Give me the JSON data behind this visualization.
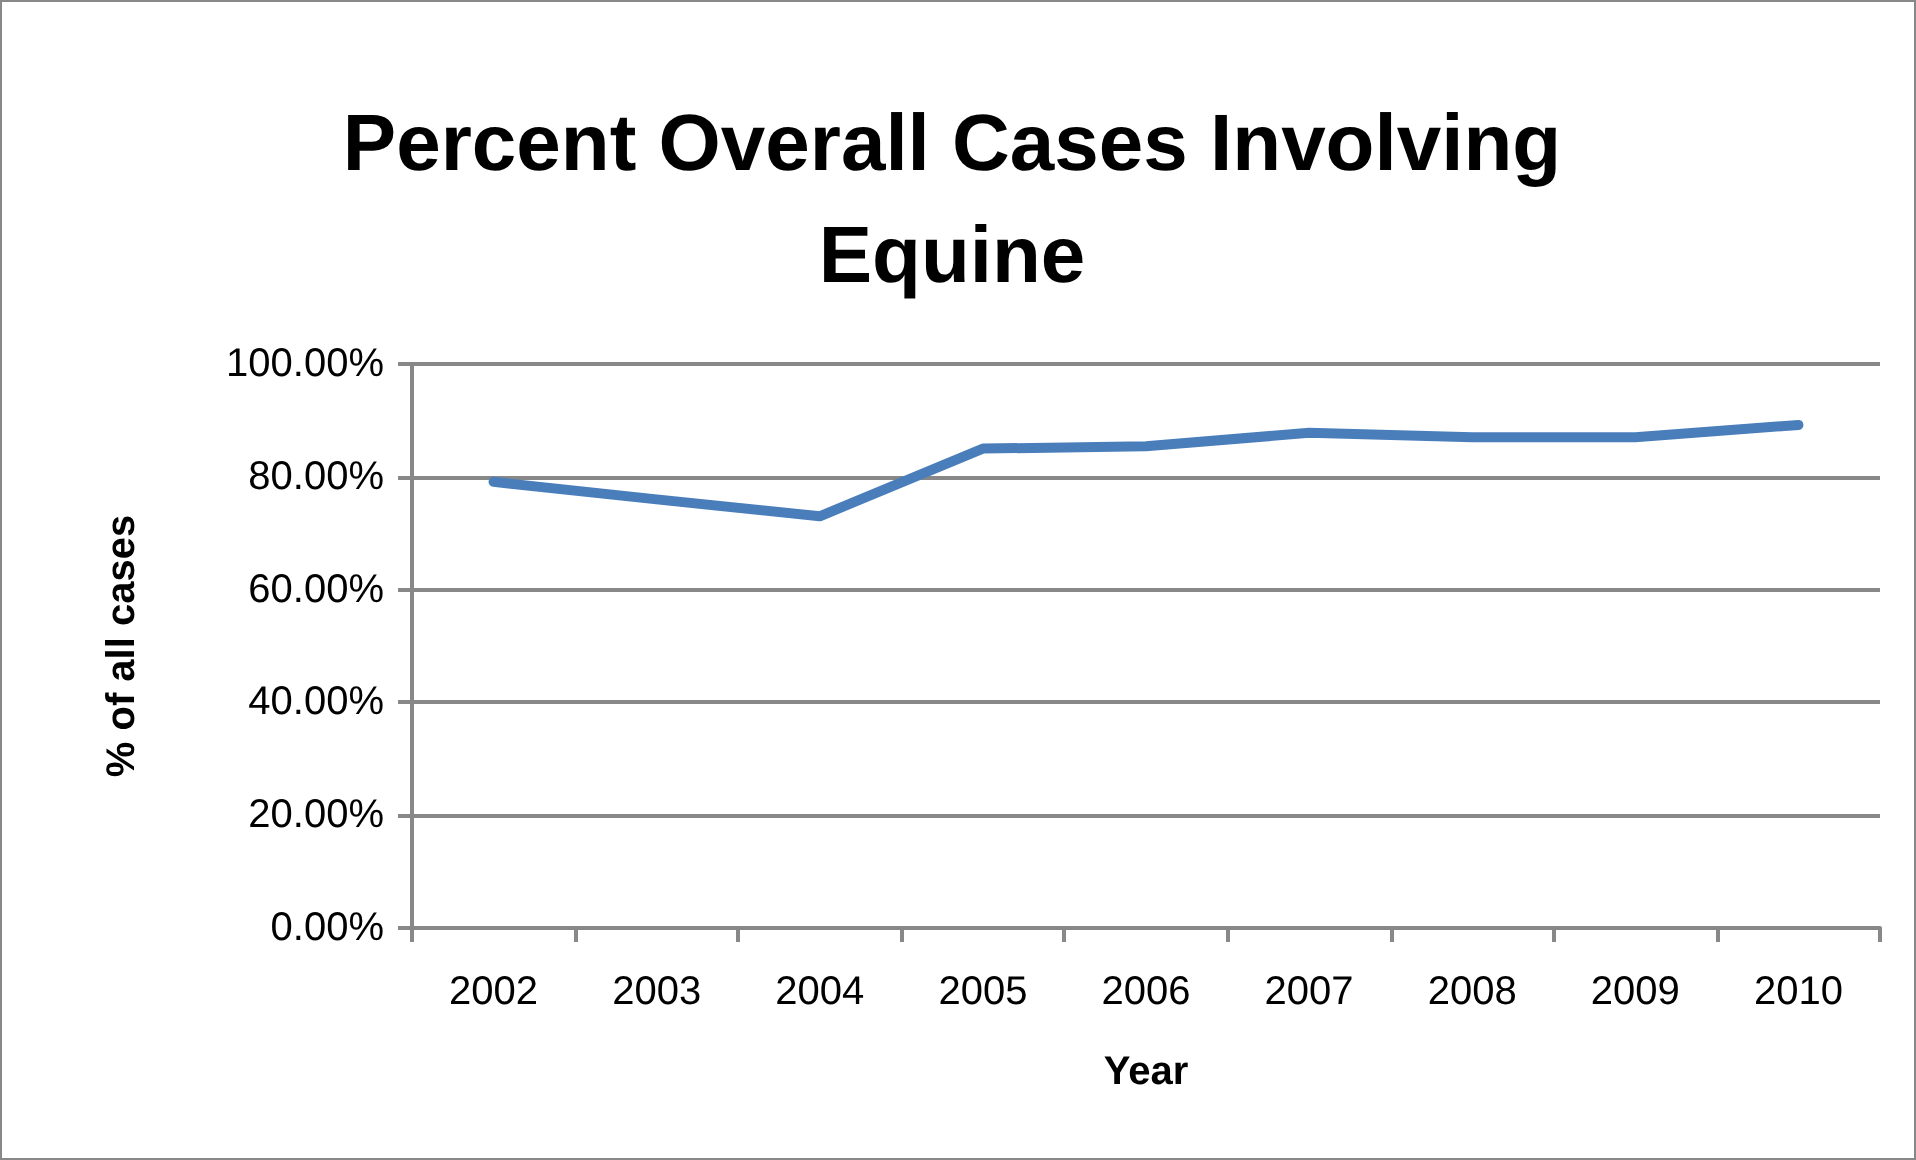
{
  "chart_data": {
    "type": "line",
    "title": "Percent Overall Cases Involving\nEquine",
    "xlabel": "Year",
    "ylabel": "% of all cases",
    "categories": [
      "2002",
      "2003",
      "2004",
      "2005",
      "2006",
      "2007",
      "2008",
      "2009",
      "2010"
    ],
    "series": [
      {
        "color": "#4a7ebb",
        "values": [
          79.1,
          76.0,
          73.0,
          85.0,
          85.4,
          87.8,
          87.0,
          87.0,
          89.2
        ]
      }
    ],
    "ylim": [
      0,
      100
    ],
    "yticks": [
      {
        "value": 0,
        "label": "0.00%"
      },
      {
        "value": 20,
        "label": "20.00%"
      },
      {
        "value": 40,
        "label": "40.00%"
      },
      {
        "value": 60,
        "label": "60.00%"
      },
      {
        "value": 80,
        "label": "80.00%"
      },
      {
        "value": 100,
        "label": "100.00%"
      }
    ],
    "grid": "y",
    "marker": "none",
    "line_style": "solid"
  }
}
